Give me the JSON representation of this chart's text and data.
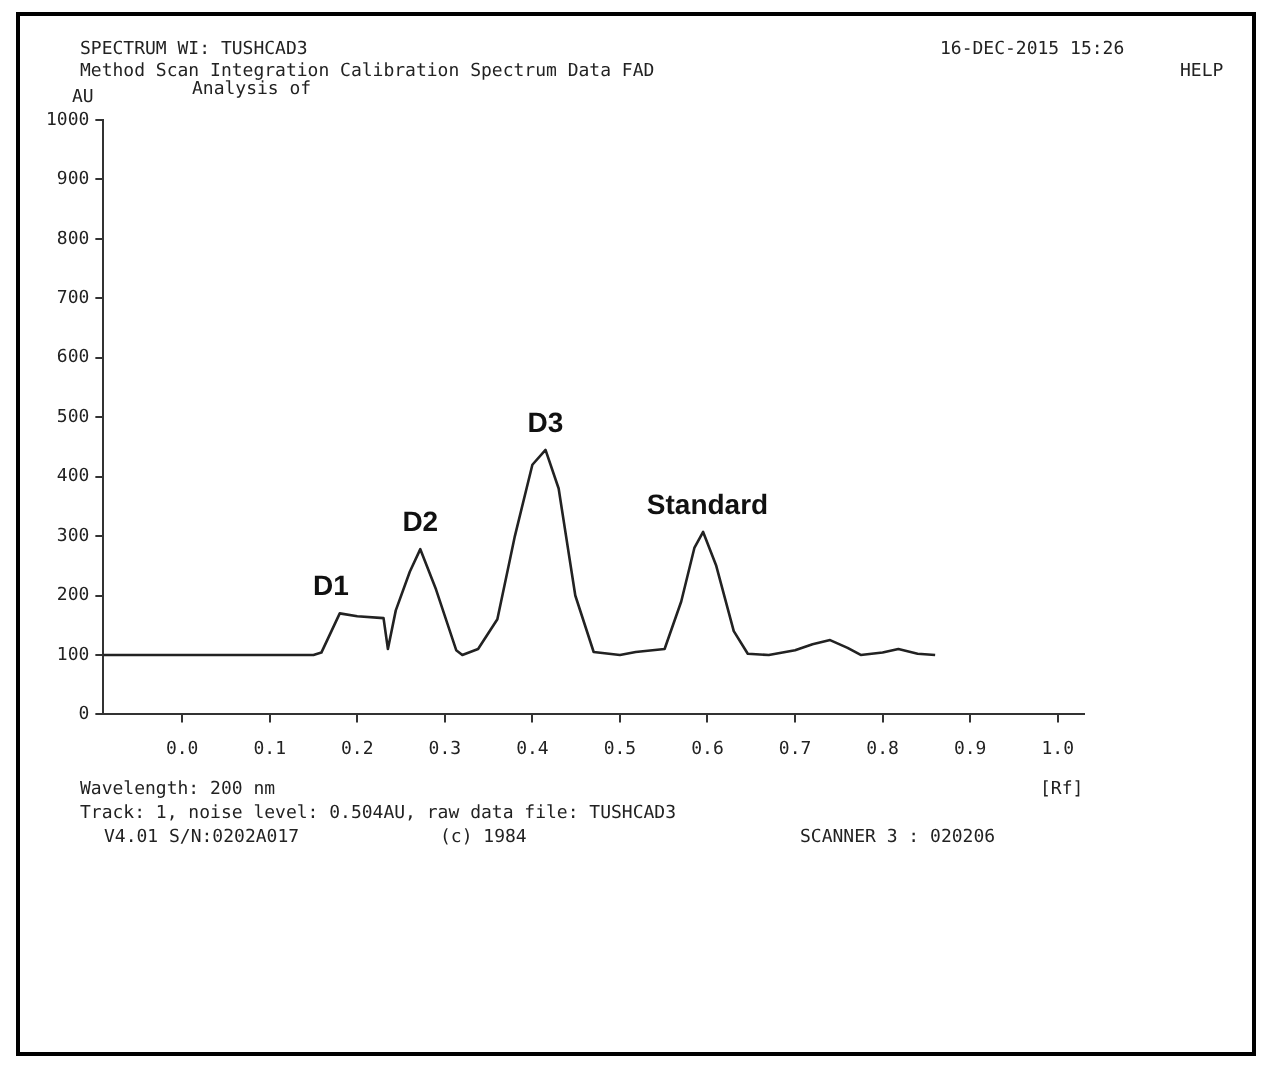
{
  "chart_data": {
    "type": "line",
    "title": "Analysis of",
    "ylabel": "AU",
    "xlabel": "[Rf]",
    "x": [
      -0.09,
      0.15,
      0.159,
      0.18,
      0.2,
      0.23,
      0.235,
      0.244,
      0.26,
      0.272,
      0.29,
      0.313,
      0.32,
      0.338,
      0.36,
      0.38,
      0.4,
      0.415,
      0.43,
      0.449,
      0.47,
      0.5,
      0.518,
      0.551,
      0.57,
      0.585,
      0.595,
      0.61,
      0.63,
      0.646,
      0.67,
      0.7,
      0.72,
      0.74,
      0.76,
      0.775,
      0.8,
      0.818,
      0.84,
      0.86
    ],
    "series": [
      {
        "color": "#222222",
        "values": [
          100,
          100,
          104,
          170,
          165,
          162,
          110,
          175,
          240,
          278,
          210,
          108,
          100,
          110,
          160,
          300,
          420,
          445,
          380,
          200,
          105,
          100,
          105,
          110,
          190,
          280,
          307,
          250,
          140,
          102,
          100,
          108,
          118,
          125,
          112,
          100,
          104,
          110,
          102,
          100
        ]
      }
    ],
    "xlim": [
      -0.09,
      1.03
    ],
    "xticks": [
      {
        "value": 0,
        "label": "0.0"
      },
      0.1,
      0.2,
      0.3,
      0.4,
      0.5,
      0.6,
      0.7,
      0.8,
      0.9,
      {
        "value": 1,
        "label": "1.0"
      }
    ],
    "ylim": [
      0,
      1000
    ],
    "yticks": [
      0,
      100,
      200,
      300,
      400,
      500,
      600,
      700,
      800,
      900,
      1000
    ],
    "grid": false,
    "legend": false,
    "annotations": [
      {
        "text": "D1",
        "x": 0.17,
        "y": 170
      },
      {
        "text": "D2",
        "x": 0.272,
        "y": 278
      },
      {
        "text": "D3",
        "x": 0.415,
        "y": 445
      },
      {
        "text": "Standard",
        "x": 0.6,
        "y": 307
      },
      "SPECTRUM   WI: TUSHCAD3",
      "16-DEC-2015 15:26",
      "Method  Scan  Integration  Calibration  Spectrum  Data  FAD",
      "HELP",
      "Wavelength: 200 nm",
      "Track:  1, noise level:    0.504AU, raw data file: TUSHCAD3",
      "V4.01 S/N:0202A017",
      "(c) 1984",
      "SCANNER 3 : 020206"
    ]
  }
}
